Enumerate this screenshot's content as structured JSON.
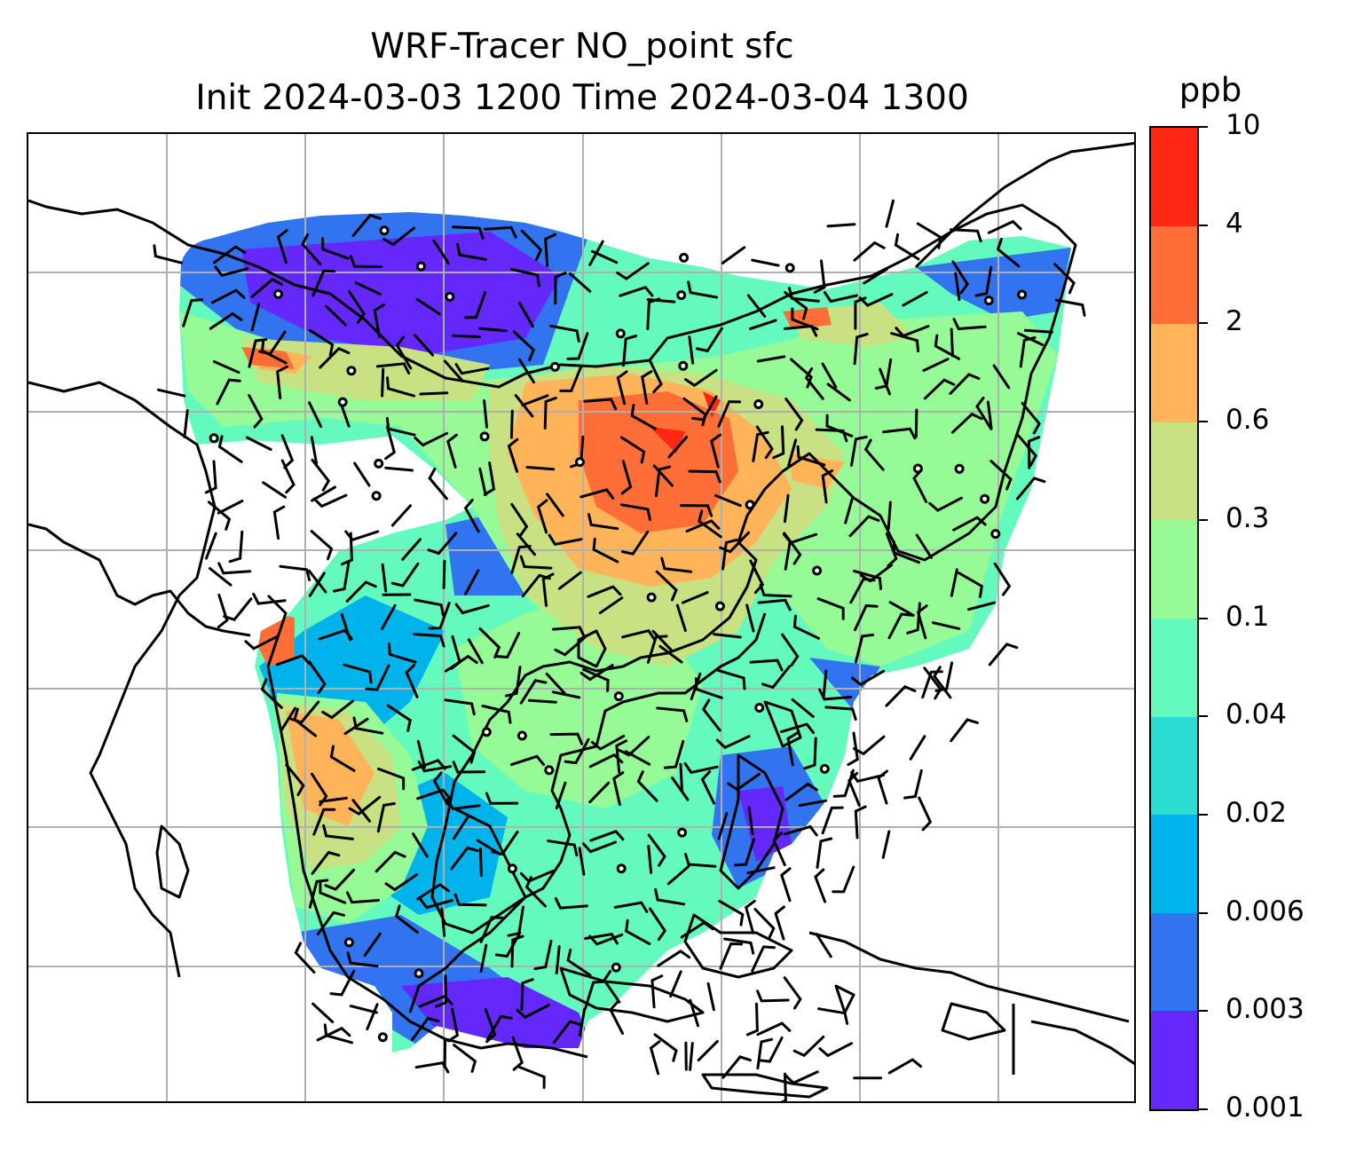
{
  "title": {
    "line1": "WRF-Tracer NO_point sfc",
    "line2": "Init 2024-03-03 1200 Time 2024-03-04 1300"
  },
  "colorbar": {
    "unit": "ppb",
    "levels": [
      "0.001",
      "0.003",
      "0.006",
      "0.02",
      "0.04",
      "0.1",
      "0.3",
      "0.6",
      "2",
      "4",
      "10"
    ],
    "colors": [
      "#6428fa",
      "#3274f0",
      "#00b4eb",
      "#2ddcd2",
      "#64fabe",
      "#96fa96",
      "#c8e182",
      "#ffb45a",
      "#ff6e37",
      "#ff2814"
    ]
  },
  "map": {
    "gridlines": "on",
    "coastlines": "on",
    "overlay": "wind barbs and calm-wind circles"
  }
}
